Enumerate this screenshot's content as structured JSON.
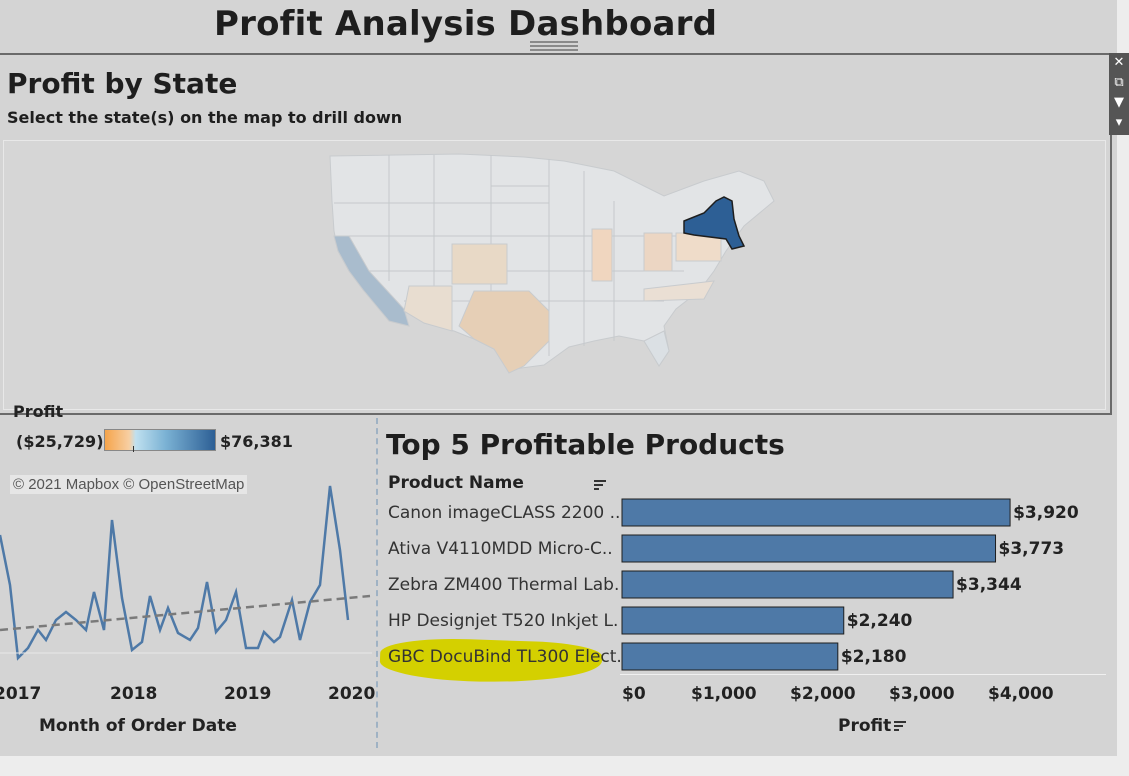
{
  "dashboard": {
    "title": "Profit Analysis Dashboard"
  },
  "map": {
    "title": "Profit by State",
    "subtitle": "Select the state(s) on the map to drill down",
    "legend": {
      "title": "Profit",
      "min": "($25,729)",
      "max": "$76,381"
    },
    "attribution": "© 2021 Mapbox © OpenStreetMap",
    "selected_state": "New York",
    "colors": {
      "selected": "#2d5f95",
      "negative": "#f5a44b",
      "positive": "#7bb2d4"
    }
  },
  "timeline": {
    "x_ticks": [
      "2017",
      "2018",
      "2019",
      "2020"
    ],
    "x_title": "Month of Order Date",
    "line_color": "#4e79a7"
  },
  "bar_chart": {
    "title": "Top 5 Profitable Products",
    "column_header": "Product Name",
    "axis_title": "Profit",
    "axis_ticks": [
      "$0",
      "$1,000",
      "$2,000",
      "$3,000",
      "$4,000"
    ],
    "highlight_color": "#d4d000"
  },
  "chart_data": {
    "type": "bar",
    "categories": [
      "Canon imageCLASS 2200 ..",
      "Ativa V4110MDD Micro-C..",
      "Zebra ZM400 Thermal Lab..",
      "HP Designjet T520 Inkjet L..",
      "GBC DocuBind TL300 Elect.."
    ],
    "values": [
      3920,
      3773,
      3344,
      2240,
      2180
    ],
    "value_labels": [
      "$3,920",
      "$3,773",
      "$3,344",
      "$2,240",
      "$2,180"
    ],
    "xlabel": "Profit",
    "xlim": [
      0,
      4800
    ],
    "bar_color": "#4e79a7"
  }
}
